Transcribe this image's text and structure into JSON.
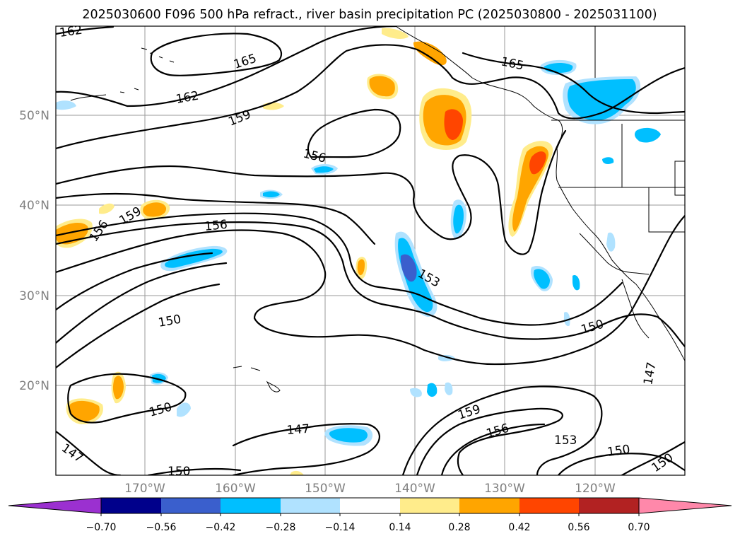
{
  "title": "2025030600 F096 500 hPa refract., river basin precipitation PC (2025030800 - 2025031100)",
  "lat_labels": [
    "50°N",
    "40°N",
    "30°N",
    "20°N"
  ],
  "lon_labels": [
    "170°W",
    "160°W",
    "150°W",
    "140°W",
    "130°W",
    "120°W"
  ],
  "contour_labels": [
    {
      "text": "162"
    },
    {
      "text": "165"
    },
    {
      "text": "165"
    },
    {
      "text": "162"
    },
    {
      "text": "159"
    },
    {
      "text": "156"
    },
    {
      "text": "159"
    },
    {
      "text": "156"
    },
    {
      "text": "156"
    },
    {
      "text": "153"
    },
    {
      "text": "150"
    },
    {
      "text": "150"
    },
    {
      "text": "150"
    },
    {
      "text": "147"
    },
    {
      "text": "147"
    },
    {
      "text": "150"
    },
    {
      "text": "159"
    },
    {
      "text": "156"
    },
    {
      "text": "153"
    },
    {
      "text": "150"
    },
    {
      "text": "147"
    },
    {
      "text": "150"
    }
  ],
  "colorbar": {
    "ticks": [
      "−0.70",
      "−0.56",
      "−0.42",
      "−0.28",
      "−0.14",
      "0.14",
      "0.28",
      "0.42",
      "0.56",
      "0.70"
    ],
    "colors": {
      "below_min": "#9b30d0",
      "neg_056_070": "#00008b",
      "neg_042_056": "#3a5fcd",
      "neg_028_042": "#00bfff",
      "neg_014_028": "#b0e2ff",
      "neutral": "#ffffff",
      "pos_014_028": "#ffec8b",
      "pos_028_042": "#ffa500",
      "pos_042_056": "#ff4500",
      "pos_056_070": "#b22222",
      "above_max": "#ff88aa"
    }
  }
}
